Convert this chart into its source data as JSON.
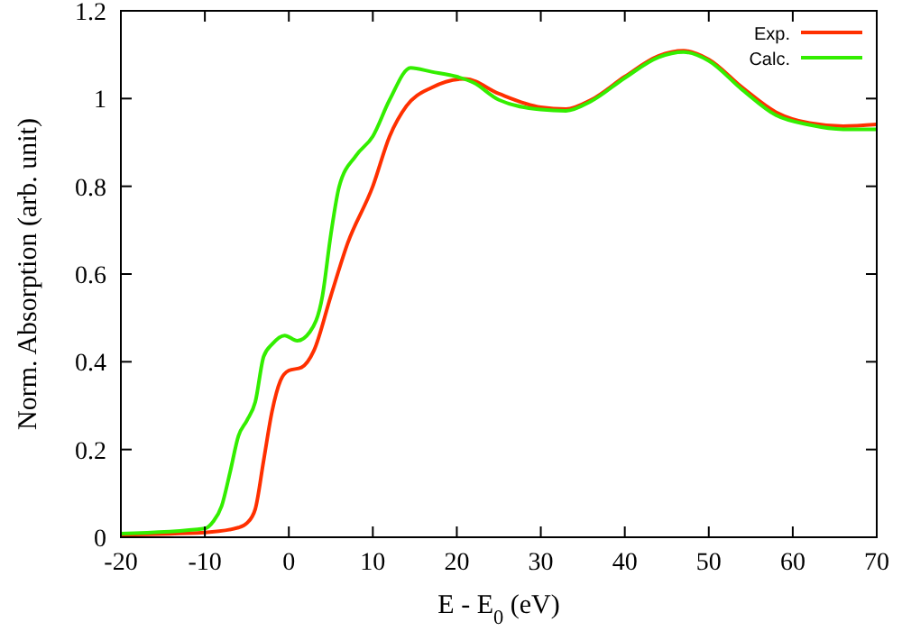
{
  "chart_data": {
    "type": "line",
    "xlabel": "E - E$_{0}$ (eV)",
    "ylabel": "Norm. Absorption (arb. unit)",
    "xlim": [
      -20,
      70
    ],
    "ylim": [
      0,
      1.2
    ],
    "xticks": [
      -20,
      -10,
      0,
      10,
      20,
      30,
      40,
      50,
      60,
      70
    ],
    "yticks": [
      0,
      0.2,
      0.4,
      0.6,
      0.8,
      1,
      1.2
    ],
    "grid": false,
    "legend": "top right",
    "marker": "none",
    "line_style": "solid",
    "series": [
      {
        "name": "Exp.",
        "color": "#ff3000",
        "x": [
          -20,
          -10,
          -6,
          -5,
          -4,
          -3,
          -2,
          -1,
          0,
          1.5,
          3,
          5,
          7,
          10,
          12,
          14,
          17,
          21,
          25,
          30,
          33,
          36,
          40,
          44,
          47,
          50,
          54,
          58,
          62,
          66,
          70
        ],
        "values": [
          0.006,
          0.011,
          0.022,
          0.032,
          0.064,
          0.175,
          0.287,
          0.357,
          0.38,
          0.387,
          0.426,
          0.55,
          0.67,
          0.8,
          0.914,
          0.983,
          1.025,
          1.045,
          1.011,
          0.98,
          0.976,
          0.997,
          1.05,
          1.097,
          1.109,
          1.089,
          1.025,
          0.969,
          0.944,
          0.937,
          0.941
        ]
      },
      {
        "name": "Calc.",
        "color": "#33ee00",
        "x": [
          -20,
          -10,
          -9,
          -8,
          -7,
          -6,
          -5,
          -4,
          -3,
          -2,
          -0.5,
          1,
          2.5,
          4,
          5,
          6,
          8,
          10,
          12,
          14.5,
          17,
          20,
          22,
          25,
          30,
          33,
          36,
          40,
          44,
          47,
          50,
          54,
          58,
          62,
          66,
          70
        ],
        "values": [
          0.008,
          0.02,
          0.036,
          0.071,
          0.148,
          0.231,
          0.266,
          0.308,
          0.412,
          0.44,
          0.46,
          0.448,
          0.468,
          0.55,
          0.69,
          0.8,
          0.87,
          0.914,
          0.997,
          1.07,
          1.061,
          1.05,
          1.036,
          0.997,
          0.975,
          0.972,
          0.994,
          1.047,
          1.094,
          1.106,
          1.086,
          1.02,
          0.962,
          0.94,
          0.93,
          0.93
        ]
      }
    ]
  }
}
